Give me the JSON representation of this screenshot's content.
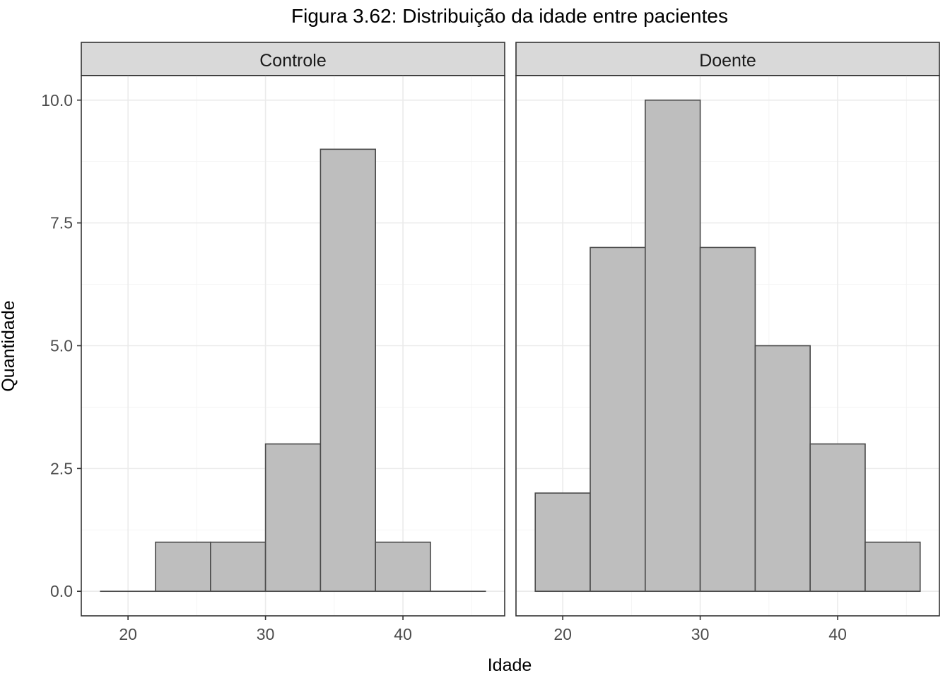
{
  "chart_data": {
    "type": "bar",
    "subtype": "histogram-faceted",
    "title": "Figura 3.62: Distribuição da idade entre pacientes",
    "xlabel": "Idade",
    "ylabel": "Quantidade",
    "xlim": [
      16.6,
      47.4
    ],
    "ylim": [
      -0.5,
      10.5
    ],
    "x_ticks": [
      20,
      30,
      40
    ],
    "x_tick_labels": [
      "20",
      "30",
      "40"
    ],
    "y_ticks": [
      0,
      2.5,
      5,
      7.5,
      10
    ],
    "y_tick_labels": [
      "0.0",
      "2.5",
      "5.0",
      "7.5",
      "10.0"
    ],
    "bin_edges": [
      18,
      22,
      26,
      30,
      34,
      38,
      42,
      46
    ],
    "grid": true,
    "colors": {
      "bar_fill": "#bebebe",
      "bar_stroke": "#4a4a4a",
      "strip_bg": "#d9d9d9"
    },
    "panels": [
      {
        "name": "Controle",
        "counts": [
          0,
          1,
          1,
          3,
          9,
          1,
          0
        ]
      },
      {
        "name": "Doente",
        "counts": [
          2,
          7,
          10,
          7,
          5,
          3,
          1
        ]
      }
    ]
  }
}
